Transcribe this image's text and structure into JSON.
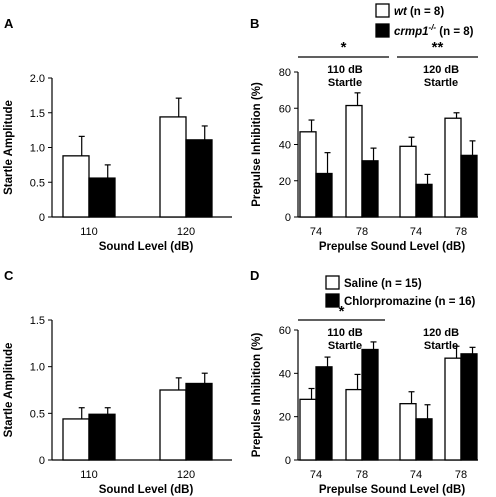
{
  "colors": {
    "wt": "#ffffff",
    "mutant": "#000000",
    "stroke": "#000000"
  },
  "chart_data": [
    {
      "panel": "A",
      "type": "bar",
      "ylabel": "Startle Amplitude",
      "xlabel": "Sound Level (dB)",
      "ylim": [
        0,
        2.0
      ],
      "yticks": [
        "0",
        "0.5",
        "1.0",
        "1.5",
        "2.0"
      ],
      "categories": [
        "110",
        "120"
      ],
      "series": [
        {
          "name": "",
          "values": [
            0.88,
            1.44
          ],
          "errors": [
            0.28,
            0.27
          ]
        },
        {
          "name": "",
          "values": [
            0.56,
            1.11
          ],
          "errors": [
            0.19,
            0.2
          ]
        }
      ]
    },
    {
      "panel": "B",
      "type": "bar",
      "ylabel": "Prepulse Inhibition (%)",
      "xlabel": "Prepulse Sound Level (dB)",
      "ylim": [
        0,
        80
      ],
      "yticks": [
        "0",
        "20",
        "40",
        "60",
        "80"
      ],
      "categories": [
        "74",
        "78",
        "74",
        "78"
      ],
      "groups": [
        {
          "label": "110 dB Startle",
          "sig": "*"
        },
        {
          "label": "120 dB Startle",
          "sig": "**"
        }
      ],
      "legend": [
        {
          "name_italic": "wt",
          "name_sup": "",
          "suffix": " (n = 8)"
        },
        {
          "name_italic": "crmp1",
          "name_sup": "-/-",
          "suffix": " (n = 8)"
        }
      ],
      "series": [
        {
          "values": [
            47,
            61.5,
            39,
            54.5
          ],
          "errors": [
            6.5,
            7,
            5,
            3
          ]
        },
        {
          "values": [
            24,
            31,
            18,
            34
          ],
          "errors": [
            11.5,
            7,
            5.5,
            8
          ]
        }
      ]
    },
    {
      "panel": "C",
      "type": "bar",
      "ylabel": "Startle Amplitude",
      "xlabel": "Sound Level (dB)",
      "ylim": [
        0,
        1.5
      ],
      "yticks": [
        "0",
        "0.5",
        "1.0",
        "1.5"
      ],
      "categories": [
        "110",
        "120"
      ],
      "series": [
        {
          "name": "",
          "values": [
            0.44,
            0.75
          ],
          "errors": [
            0.12,
            0.13
          ]
        },
        {
          "name": "",
          "values": [
            0.49,
            0.82
          ],
          "errors": [
            0.07,
            0.11
          ]
        }
      ]
    },
    {
      "panel": "D",
      "type": "bar",
      "ylabel": "Prepulse Inhibition (%)",
      "xlabel": "Prepulse Sound Level (dB)",
      "ylim": [
        0,
        60
      ],
      "yticks": [
        "0",
        "20",
        "40",
        "60"
      ],
      "categories": [
        "74",
        "78",
        "74",
        "78"
      ],
      "groups": [
        {
          "label": "110 dB Startle",
          "sig": "*"
        },
        {
          "label": "120 dB Startle",
          "sig": ""
        }
      ],
      "legend": [
        {
          "name_italic": "",
          "name_sup": "",
          "suffix": "Saline (n = 15)"
        },
        {
          "name_italic": "",
          "name_sup": "",
          "suffix": "Chlorpromazine (n = 16)"
        }
      ],
      "series": [
        {
          "values": [
            28,
            32.5,
            26,
            47
          ],
          "errors": [
            5,
            7,
            5.5,
            5.5
          ]
        },
        {
          "values": [
            43,
            51,
            19,
            49
          ],
          "errors": [
            4.5,
            3.5,
            6.5,
            3
          ]
        }
      ]
    }
  ]
}
